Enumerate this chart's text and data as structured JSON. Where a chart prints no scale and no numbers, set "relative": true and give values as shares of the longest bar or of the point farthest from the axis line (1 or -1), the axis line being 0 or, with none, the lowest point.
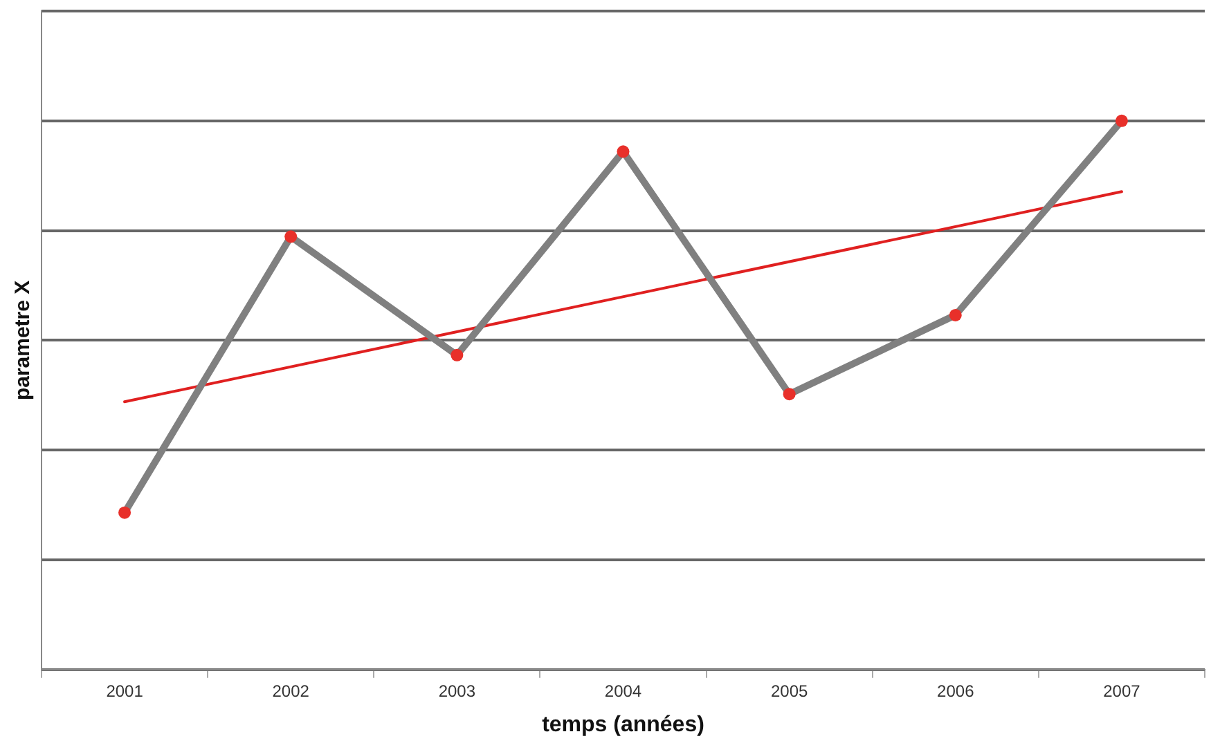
{
  "chart_data": {
    "type": "line",
    "xlabel": "temps (années)",
    "ylabel": "parametre X",
    "relative": true,
    "grid": "y",
    "legend": false,
    "marker": "circle",
    "line_style": "solid",
    "categories": [
      "2001",
      "2002",
      "2003",
      "2004",
      "2005",
      "2006",
      "2007"
    ],
    "series": [
      {
        "color": "#808080",
        "colors": [
          "#e8302a",
          "#e8302a",
          "#e8302a",
          "#e8302a",
          "#e8302a",
          "#e8302a",
          "#e8302a"
        ],
        "values": [
          0.286,
          0.789,
          0.573,
          0.944,
          0.502,
          0.646,
          1
        ]
      },
      {
        "type": "line",
        "color": "#e02020",
        "marker": "none",
        "values": [
          0.488,
          null,
          null,
          null,
          null,
          null,
          0.871
        ]
      }
    ]
  }
}
